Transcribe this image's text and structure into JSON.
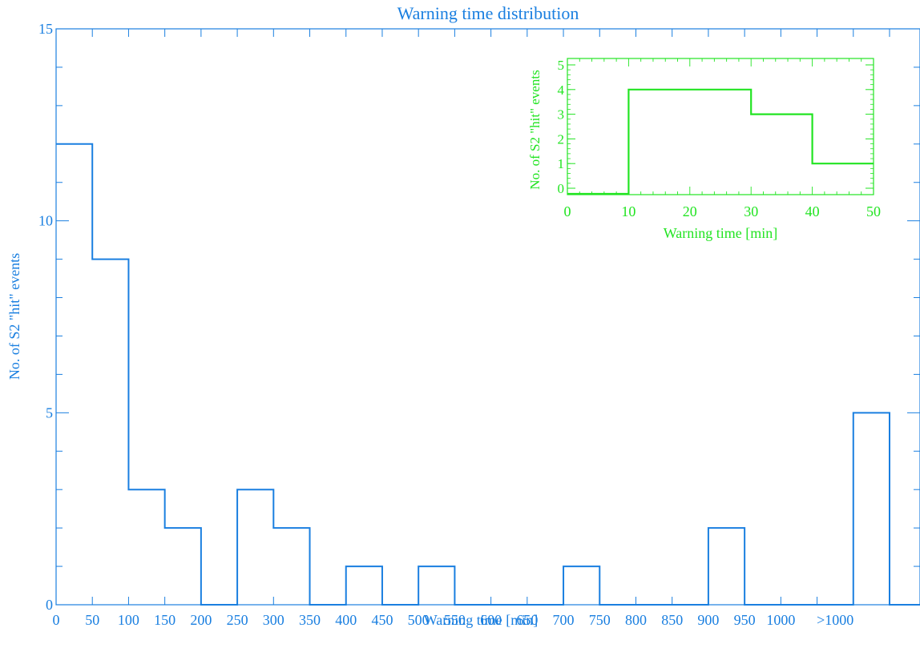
{
  "chart_data": [
    {
      "type": "bar",
      "style": "step-histogram",
      "title": "Warning time distribution",
      "xlabel": "Warning time [min]",
      "ylabel": "No. of S2 \"hit\" events",
      "color": "#1a7fe0",
      "ylim": [
        0,
        15
      ],
      "yticks": [
        "0",
        "5",
        "10",
        "15"
      ],
      "xticks": [
        "0",
        "50",
        "100",
        "150",
        "200",
        "250",
        "300",
        "350",
        "400",
        "450",
        "500",
        "550",
        "600",
        "650",
        "700",
        "750",
        "800",
        "850",
        "900",
        "950",
        "1000",
        ">1000"
      ],
      "categories": [
        "0-50",
        "50-100",
        "100-150",
        "150-200",
        "200-250",
        "250-300",
        "300-350",
        "350-400",
        "400-450",
        "450-500",
        "500-550",
        "550-600",
        "600-650",
        "650-700",
        "700-750",
        "750-800",
        "800-850",
        "850-900",
        "900-950",
        "950-1000",
        "1000-1050",
        "1050-1100",
        ">1000"
      ],
      "values": [
        12,
        9,
        3,
        2,
        0,
        3,
        2,
        0,
        1,
        0,
        1,
        0,
        0,
        0,
        1,
        0,
        0,
        0,
        2,
        0,
        0,
        0,
        5
      ]
    },
    {
      "type": "bar",
      "style": "step-histogram",
      "xlabel": "Warning time [min]",
      "ylabel": "No. of S2 \"hit\" events",
      "color": "#22e422",
      "xlim": [
        0,
        50
      ],
      "ylim": [
        0,
        5
      ],
      "xticks": [
        "0",
        "10",
        "20",
        "30",
        "40",
        "50"
      ],
      "yticks": [
        "0",
        "1",
        "2",
        "3",
        "4",
        "5"
      ],
      "categories": [
        "0-10",
        "10-20",
        "20-30",
        "30-40",
        "40-50"
      ],
      "values": [
        0,
        4,
        4,
        3,
        1
      ]
    }
  ]
}
